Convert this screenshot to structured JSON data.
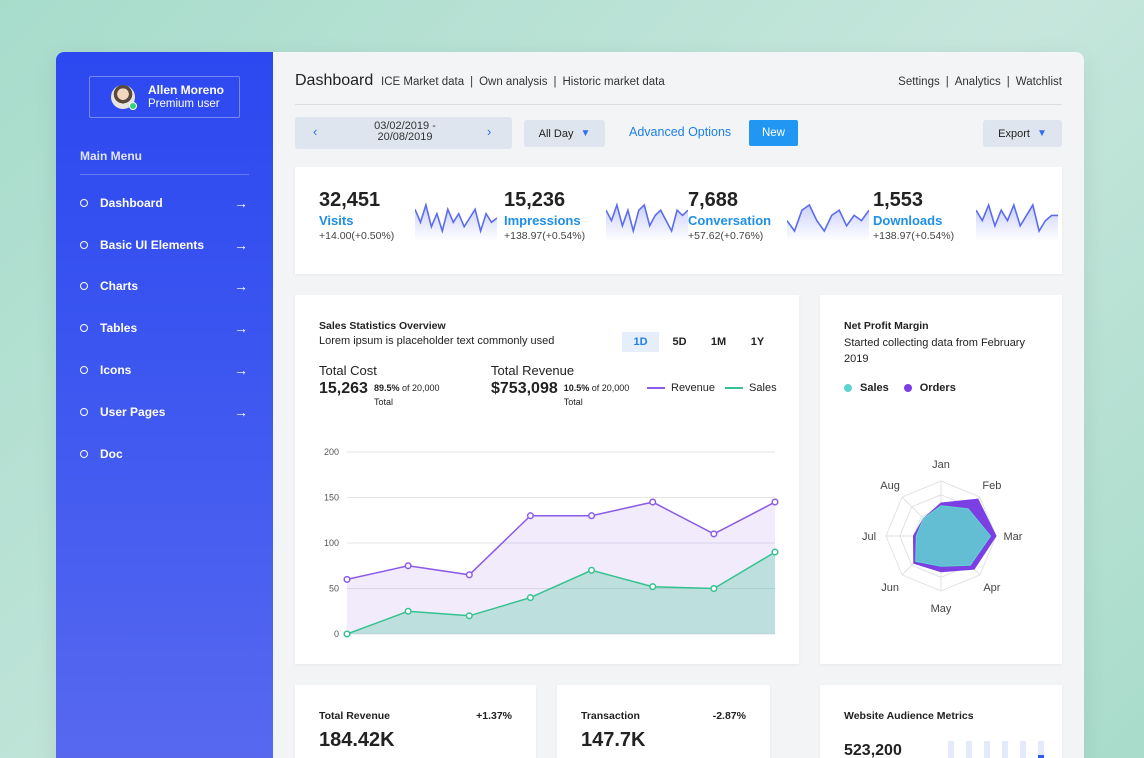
{
  "colors": {
    "sidebar_top": "#2c48f0",
    "sidebar_bottom": "#5869ef",
    "accent_blue": "#1e8fe8",
    "revenue": "#8a5be6",
    "sales": "#35c28f",
    "radar_orders": "#7b3fe4",
    "radar_sales": "#5fd3d0"
  },
  "sidebar": {
    "user_name": "Allen Moreno",
    "user_role": "Premium user",
    "menu_title": "Main Menu",
    "items": [
      {
        "label": "Dashboard",
        "arrow": true
      },
      {
        "label": "Basic UI Elements",
        "arrow": true
      },
      {
        "label": "Charts",
        "arrow": true
      },
      {
        "label": "Tables",
        "arrow": true
      },
      {
        "label": "Icons",
        "arrow": true
      },
      {
        "label": "User Pages",
        "arrow": true
      },
      {
        "label": "Doc",
        "arrow": false
      }
    ]
  },
  "header": {
    "title": "Dashboard",
    "links": [
      "ICE Market data",
      "Own analysis",
      "Historic market data"
    ],
    "right_links": [
      "Settings",
      "Analytics",
      "Watchlist"
    ]
  },
  "toolbar": {
    "date_start": "03/02/2019 -",
    "date_end": "20/08/2019",
    "allday_label": "All Day",
    "advanced_label": "Advanced Options",
    "new_label": "New",
    "export_label": "Export"
  },
  "stats": [
    {
      "value": "32,451",
      "label": "Visits",
      "change": "+14.00(+0.50%)",
      "spark": [
        6,
        3,
        7,
        2,
        5,
        1,
        6,
        3,
        5,
        2,
        4,
        6,
        1,
        5,
        3,
        4
      ]
    },
    {
      "value": "15,236",
      "label": "Impressions",
      "change": "+138.97(+0.54%)",
      "spark": [
        5,
        3,
        6,
        2,
        5,
        1,
        5,
        6,
        2,
        4,
        5,
        3,
        1,
        5,
        4,
        5
      ]
    },
    {
      "value": "7,688",
      "label": "Conversation",
      "change": "+57.62(+0.76%)",
      "spark": [
        3,
        1,
        5,
        6,
        3,
        1,
        4,
        5,
        2,
        4,
        3,
        5
      ]
    },
    {
      "value": "1,553",
      "label": "Downloads",
      "change": "+138.97(+0.54%)",
      "spark": [
        5,
        3,
        6,
        2,
        5,
        3,
        6,
        2,
        4,
        6,
        1,
        3,
        4,
        4
      ]
    }
  ],
  "sales": {
    "title": "Sales Statistics Overview",
    "subtitle": "Lorem ipsum is placeholder text commonly used",
    "periods": [
      "1D",
      "5D",
      "1M",
      "1Y"
    ],
    "active_period": "1D",
    "total_cost_label": "Total Cost",
    "total_cost_value": "15,263",
    "total_cost_pct": "89.5%",
    "total_cost_of": " of 20,000",
    "total_cost_total": "Total",
    "total_revenue_label": "Total Revenue",
    "total_revenue_value": "$753,098",
    "total_revenue_pct": "10.5%",
    "total_revenue_of": " of 20,000",
    "total_revenue_total": "Total",
    "legend_revenue": "Revenue",
    "legend_sales": "Sales"
  },
  "chart_data": {
    "type": "area",
    "x": [
      1,
      2,
      3,
      4,
      5,
      6,
      7,
      8
    ],
    "series": [
      {
        "name": "Revenue",
        "values": [
          60,
          75,
          65,
          130,
          130,
          145,
          110,
          145
        ]
      },
      {
        "name": "Sales",
        "values": [
          0,
          25,
          20,
          40,
          70,
          52,
          50,
          90
        ]
      }
    ],
    "yticks": [
      0,
      50,
      100,
      150,
      200
    ],
    "ylim": [
      0,
      200
    ],
    "grid": true
  },
  "profit": {
    "title": "Net Profit Margin",
    "subtitle": "Started collecting data from February 2019",
    "legend_sales": "Sales",
    "legend_orders": "Orders",
    "axes": [
      "Jan",
      "Feb",
      "Mar",
      "Apr",
      "May",
      "Jun",
      "Jul",
      "Aug"
    ],
    "sales_values": [
      0.55,
      0.7,
      0.9,
      0.75,
      0.55,
      0.65,
      0.45,
      0.45
    ],
    "orders_values": [
      0.6,
      0.95,
      1.0,
      0.85,
      0.65,
      0.7,
      0.5,
      0.45
    ]
  },
  "bottom": [
    {
      "title": "Total Revenue",
      "change": "+1.37%",
      "value": "184.42K"
    },
    {
      "title": "Transaction",
      "change": "-2.87%",
      "value": "147.7K"
    },
    {
      "title": "Website Audience Metrics",
      "value": "523,200"
    }
  ]
}
